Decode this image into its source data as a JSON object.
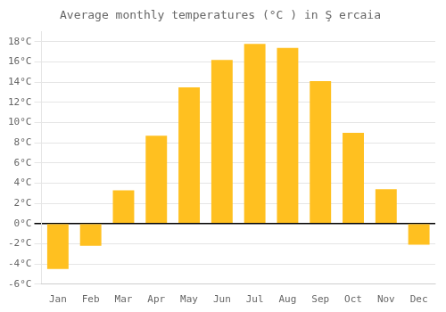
{
  "chart_data": {
    "type": "bar",
    "title": "Average monthly temperatures (°C ) in Ş ercaia",
    "categories": [
      "Jan",
      "Feb",
      "Mar",
      "Apr",
      "May",
      "Jun",
      "Jul",
      "Aug",
      "Sep",
      "Oct",
      "Nov",
      "Dec"
    ],
    "values": [
      -4.5,
      -2.2,
      3.3,
      8.7,
      13.5,
      16.2,
      17.8,
      17.4,
      14.1,
      9.0,
      3.4,
      -2.1
    ],
    "color": "#FFC020",
    "ylim": [
      -6,
      19
    ],
    "yticks": [
      {
        "value": -6,
        "label": "-6°C"
      },
      {
        "value": -4,
        "label": "-4°C"
      },
      {
        "value": -2,
        "label": "-2°C"
      },
      {
        "value": 0,
        "label": "0°C"
      },
      {
        "value": 2,
        "label": "2°C"
      },
      {
        "value": 4,
        "label": "4°C"
      },
      {
        "value": 6,
        "label": "6°C"
      },
      {
        "value": 8,
        "label": "8°C"
      },
      {
        "value": 10,
        "label": "10°C"
      },
      {
        "value": 12,
        "label": "12°C"
      },
      {
        "value": 14,
        "label": "14°C"
      },
      {
        "value": 16,
        "label": "16°C"
      },
      {
        "value": 18,
        "label": "18°C"
      }
    ],
    "grid": true
  }
}
